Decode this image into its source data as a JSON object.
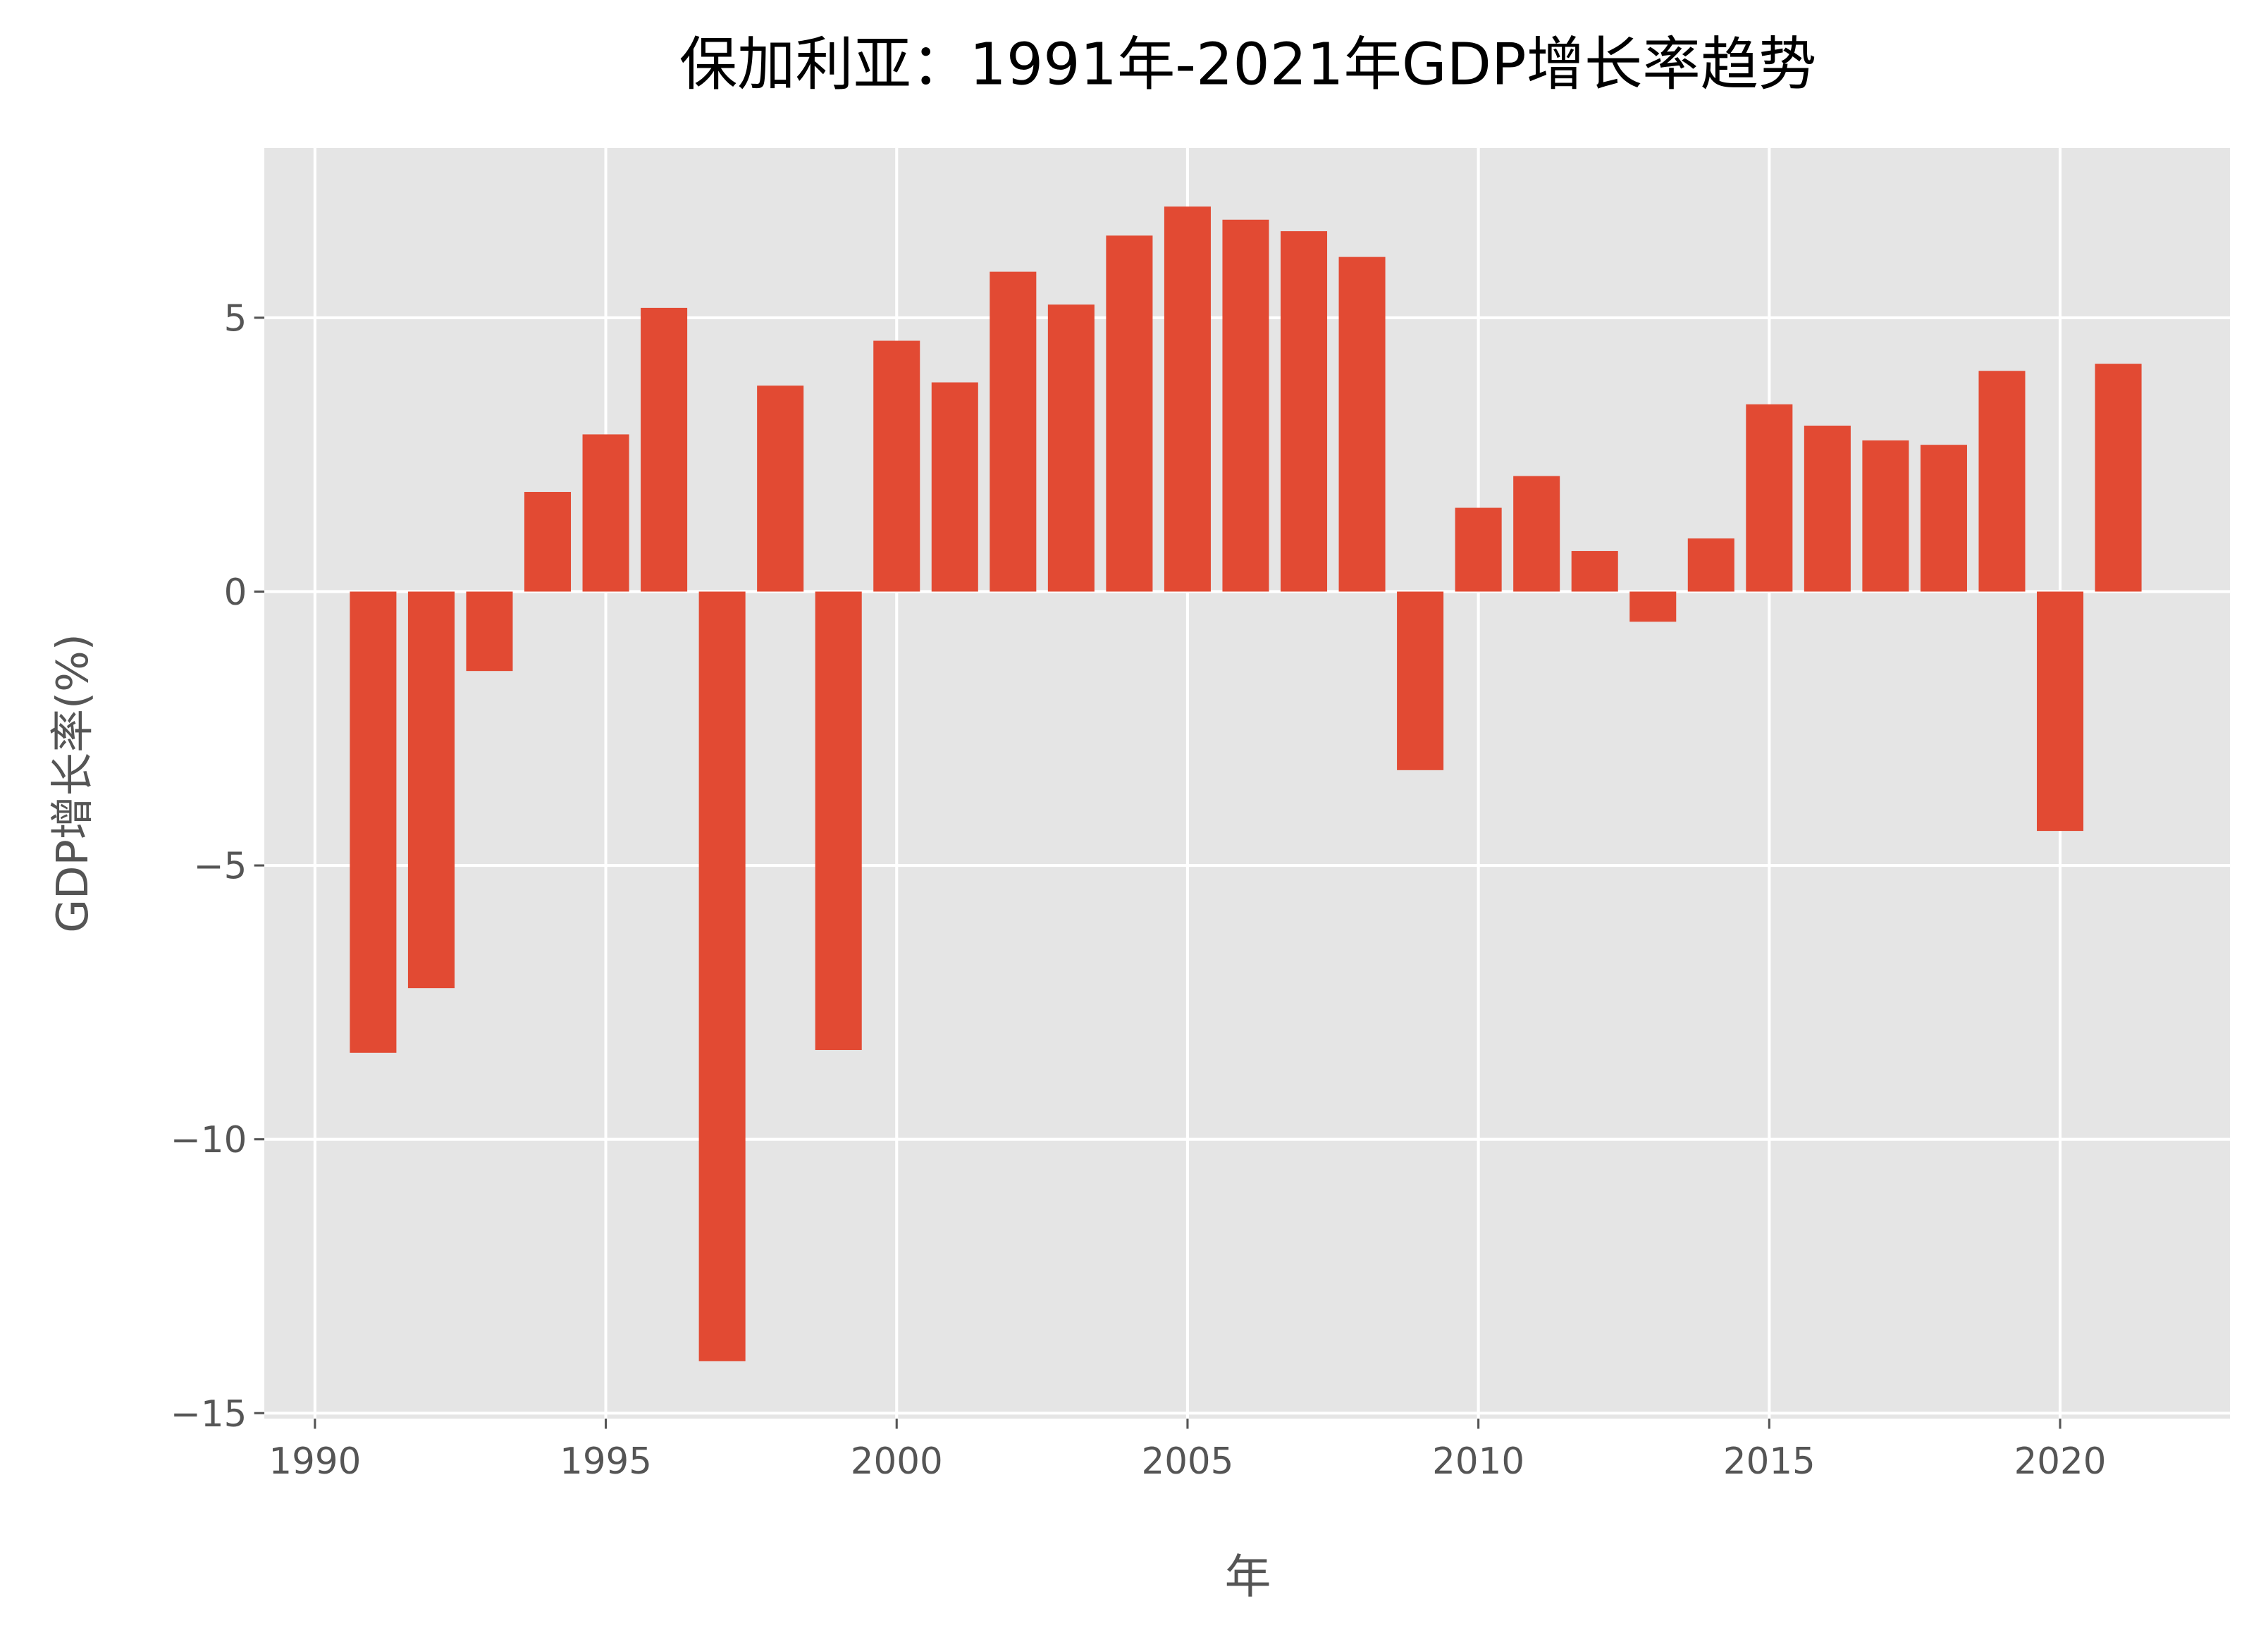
{
  "chart_data": {
    "type": "bar",
    "title": "保加利亚：1991年-2021年GDP增长率趋势",
    "xlabel": "年",
    "ylabel": "GDP增长率(%)",
    "x": [
      1991,
      1992,
      1993,
      1994,
      1995,
      1996,
      1997,
      1998,
      1999,
      2000,
      2001,
      2002,
      2003,
      2004,
      2005,
      2006,
      2007,
      2008,
      2009,
      2010,
      2011,
      2012,
      2013,
      2014,
      2015,
      2016,
      2017,
      2018,
      2019,
      2020,
      2021
    ],
    "values": [
      -8.42,
      -7.24,
      -1.45,
      1.82,
      2.87,
      5.18,
      -14.05,
      3.76,
      -8.37,
      4.58,
      3.82,
      5.84,
      5.24,
      6.5,
      7.03,
      6.79,
      6.58,
      6.11,
      -3.26,
      1.53,
      2.11,
      0.74,
      -0.55,
      0.97,
      3.42,
      3.03,
      2.76,
      2.68,
      4.03,
      -4.37,
      4.16
    ],
    "color": "#e24a33",
    "xlim": [
      1989.13,
      2022.92
    ],
    "xticks": [
      1990,
      1995,
      2000,
      2005,
      2010,
      2015,
      2020
    ],
    "ylim": [
      -15.1,
      8.1
    ],
    "yticks": [
      {
        "value": -15,
        "label": "−15"
      },
      {
        "value": -10,
        "label": "−10"
      },
      {
        "value": -5,
        "label": "−5"
      },
      0,
      5
    ],
    "grid": true
  }
}
